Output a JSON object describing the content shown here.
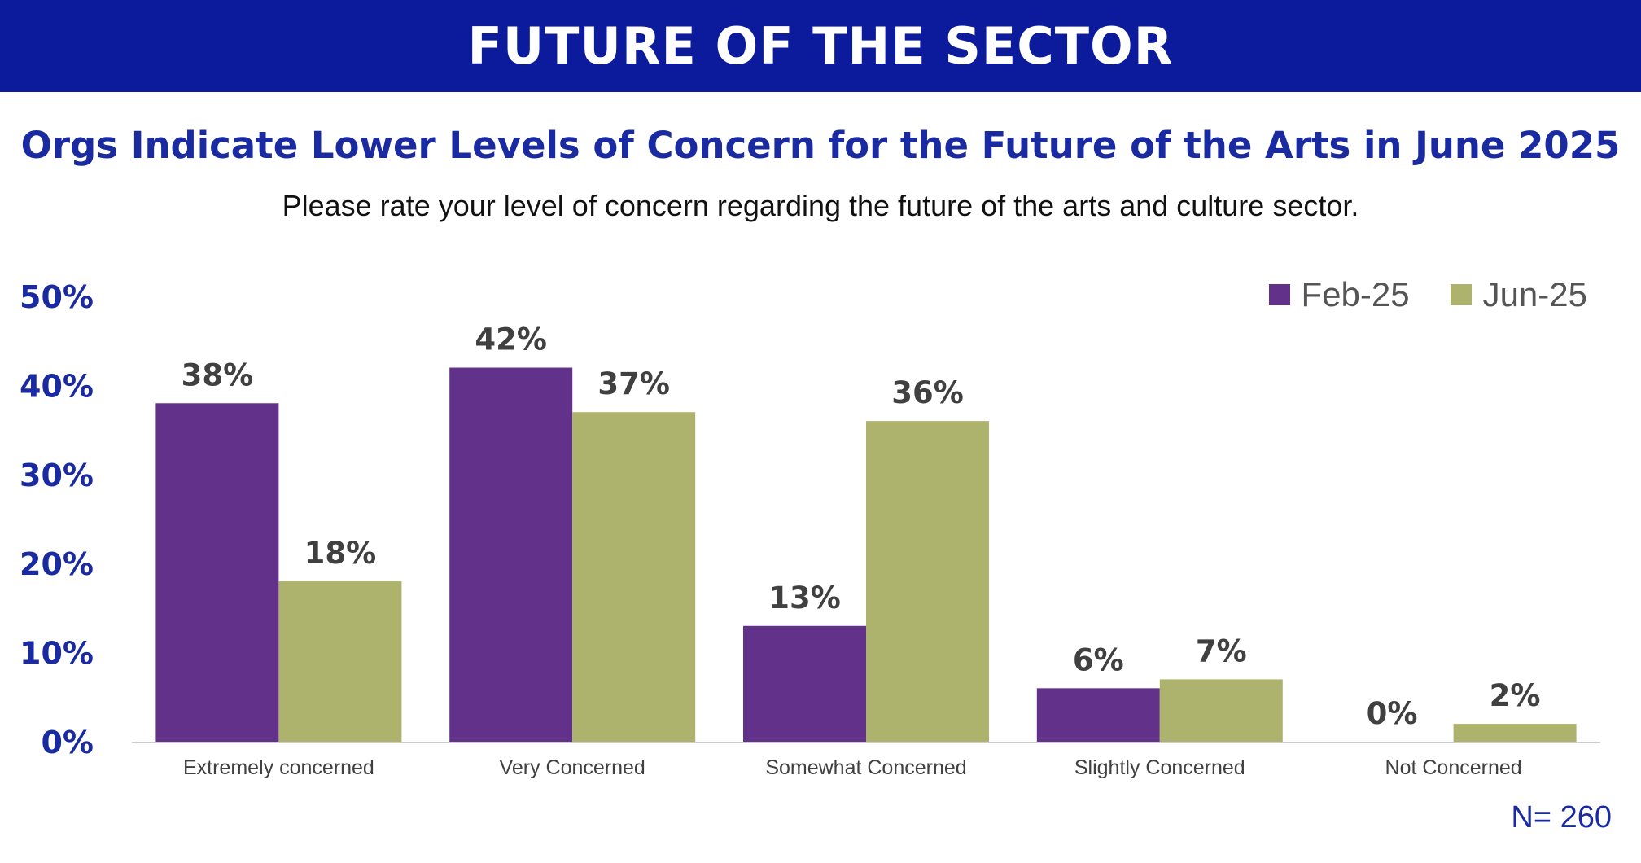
{
  "banner": {
    "title": "FUTURE OF THE SECTOR"
  },
  "chart_data": {
    "type": "bar",
    "title": "Orgs Indicate Lower Levels of Concern for the Future of the Arts in June 2025",
    "subtitle": "Please rate your level of concern regarding the future of the arts and culture sector.",
    "categories": [
      "Extremely concerned",
      "Very Concerned",
      "Somewhat Concerned",
      "Slightly Concerned",
      "Not Concerned"
    ],
    "series": [
      {
        "name": "Feb-25",
        "color": "#623189",
        "values": [
          38,
          42,
          13,
          6,
          0
        ],
        "labels": [
          "38%",
          "42%",
          "13%",
          "6%",
          "0%"
        ]
      },
      {
        "name": "Jun-25",
        "color": "#adb36d",
        "values": [
          18,
          37,
          36,
          7,
          2
        ],
        "labels": [
          "18%",
          "37%",
          "36%",
          "7%",
          "2%"
        ]
      }
    ],
    "ylim": [
      0,
      50
    ],
    "yticks": [
      "0%",
      "10%",
      "20%",
      "30%",
      "40%",
      "50%"
    ],
    "grid": false,
    "legend_position": "top-right",
    "note": "N= 260"
  }
}
